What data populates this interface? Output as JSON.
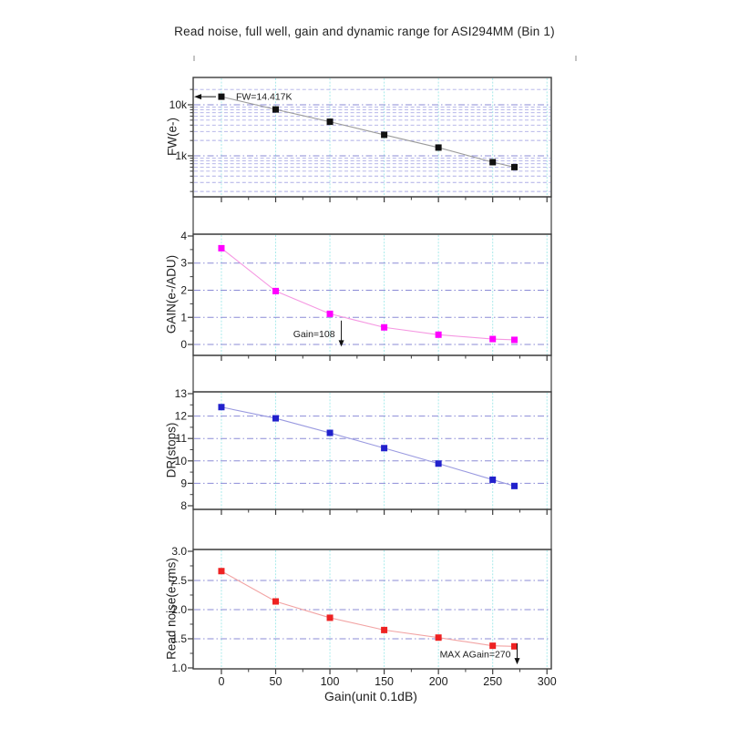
{
  "title": "Read noise, full well, gain and dynamic range for ASI294MM (Bin 1)",
  "chart_data": {
    "type": "line",
    "x_label": "Gain(unit 0.1dB)",
    "x_axis": {
      "label": "Gain(unit 0.1dB)",
      "major_ticks": [
        0,
        50,
        100,
        150,
        200,
        250,
        300
      ],
      "minor_ticks": [
        25,
        75,
        125,
        175,
        225,
        275
      ],
      "range": [
        -26,
        304
      ]
    },
    "x": [
      0,
      50,
      100,
      150,
      200,
      250,
      270
    ],
    "style": {
      "frame": "#3c3c3c",
      "h_grid": "#7f7fd2",
      "h_grid_minor": "#9a9ae0",
      "v_grid": "#a9ebeb",
      "annotation_color": "#111111",
      "text": "#1c1c1c"
    },
    "panels": [
      {
        "id": "fw",
        "ylabel": "FW(e-)",
        "scale": "log",
        "ylim": [
          157,
          34333
        ],
        "values": [
          14417,
          8100,
          4650,
          2580,
          1450,
          750,
          600
        ],
        "marker_color": "#111111",
        "line_color": "#9b9b9b",
        "yticks": [
          {
            "value": 10000,
            "label": "10k"
          },
          {
            "value": 1000,
            "label": "1k"
          }
        ],
        "gridlines": [
          10000,
          1000
        ],
        "minor_gridlines": [
          20000,
          9000,
          8000,
          7000,
          6000,
          5000,
          4000,
          3000,
          2000,
          900,
          800,
          700,
          600,
          500,
          400,
          300,
          200
        ],
        "minor_ticks": [
          20000,
          9000,
          8000,
          7000,
          6000,
          5000,
          4000,
          3000,
          2000,
          900,
          800,
          700,
          600,
          500,
          400,
          300,
          200
        ],
        "annotation": {
          "text": "FW=14.417K",
          "style": "arrow-left",
          "gain": 0,
          "value": 14417
        }
      },
      {
        "id": "gain",
        "ylabel": "GAIN(e-/ADU)",
        "scale": "linear",
        "ylim": [
          -0.403,
          4.067
        ],
        "values": [
          3.55,
          1.97,
          1.13,
          0.63,
          0.36,
          0.2,
          0.17
        ],
        "marker_color": "#ff00ff",
        "line_color": "#f598e2",
        "yticks": [
          {
            "value": 0,
            "label": "0"
          },
          {
            "value": 1,
            "label": "1"
          },
          {
            "value": 2,
            "label": "2"
          },
          {
            "value": 3,
            "label": "3"
          },
          {
            "value": 4,
            "label": "4"
          }
        ],
        "gridlines": [
          0,
          1,
          2,
          3
        ],
        "minor_gridlines": [],
        "minor_ticks": [
          0.5,
          1.5,
          2.5,
          3.5
        ],
        "annotation": {
          "text": "Gain=108",
          "style": "arrow-down",
          "gain": 108,
          "from_value": 0.88,
          "to_value": -0.08
        }
      },
      {
        "id": "dr",
        "ylabel": "DR(stops)",
        "scale": "linear",
        "ylim": [
          7.837,
          13.081
        ],
        "values": [
          12.4,
          11.9,
          11.25,
          10.57,
          9.88,
          9.16,
          8.88
        ],
        "marker_color": "#2121cc",
        "line_color": "#9a9ae0",
        "yticks": [
          {
            "value": 8,
            "label": "8"
          },
          {
            "value": 9,
            "label": "9"
          },
          {
            "value": 10,
            "label": "10"
          },
          {
            "value": 11,
            "label": "11"
          },
          {
            "value": 12,
            "label": "12"
          },
          {
            "value": 13,
            "label": "13"
          }
        ],
        "gridlines": [
          9,
          10,
          11,
          12
        ],
        "minor_gridlines": [],
        "minor_ticks": [
          8.5,
          9.5,
          10.5,
          11.5,
          12.5
        ],
        "annotation": null
      },
      {
        "id": "rn",
        "ylabel": "Read noise(e-rms)",
        "scale": "linear",
        "ylim": [
          0.984,
          3.031
        ],
        "values": [
          2.66,
          2.14,
          1.86,
          1.65,
          1.52,
          1.38,
          1.37
        ],
        "marker_color": "#ee2222",
        "line_color": "#f2a3a3",
        "yticks": [
          {
            "value": 1.0,
            "label": "1.0"
          },
          {
            "value": 1.5,
            "label": "1.5"
          },
          {
            "value": 2.0,
            "label": "2.0"
          },
          {
            "value": 2.5,
            "label": "2.5"
          },
          {
            "value": 3.0,
            "label": "3.0"
          }
        ],
        "gridlines": [
          1.5,
          2.0,
          2.5
        ],
        "minor_gridlines": [],
        "minor_ticks": [
          1.25,
          1.75,
          2.25,
          2.75
        ],
        "annotation": {
          "text": "MAX AGain=270",
          "style": "arrow-down",
          "gain": 270,
          "from_value": 1.42,
          "to_value": 1.06
        }
      }
    ]
  }
}
